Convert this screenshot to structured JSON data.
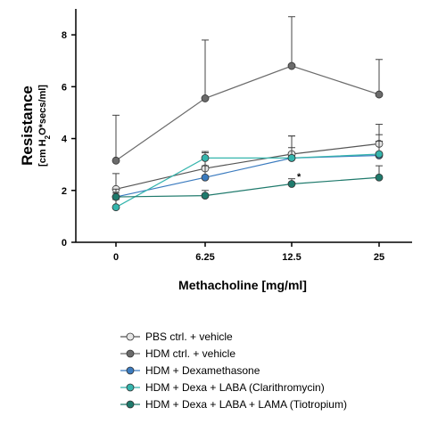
{
  "chart_data": {
    "type": "line",
    "x": [
      "0",
      "6.25",
      "12.5",
      "25"
    ],
    "xlabel": "Methacholine [mg/ml]",
    "ylabel_main": "Resistance",
    "ylabel_unit_prefix": "[cm H",
    "ylabel_unit_sub": "2",
    "ylabel_unit_suffix": "O*secs/ml]",
    "ylim": [
      0,
      9
    ],
    "yticks": [
      "0",
      "2",
      "4",
      "6",
      "8"
    ],
    "annotation": "*",
    "series": [
      {
        "name": "PBS ctrl. + vehicle",
        "color": "#e6e6e6",
        "values": [
          2.05,
          2.85,
          3.4,
          3.8
        ],
        "err": [
          0.6,
          0.6,
          0.7,
          0.75
        ]
      },
      {
        "name": "HDM ctrl. + vehicle",
        "color": "#6b6b6b",
        "values": [
          3.15,
          5.55,
          6.8,
          5.7
        ],
        "err": [
          1.75,
          2.25,
          1.9,
          1.35
        ]
      },
      {
        "name": "HDM + Dexamethasone",
        "color": "#3b7bbf",
        "values": [
          1.75,
          2.5,
          3.25,
          3.35
        ],
        "err": [
          0.3,
          0.45,
          0.85,
          0.8
        ]
      },
      {
        "name": "HDM + Dexa + LABA (Clarithromycin)",
        "color": "#35b5ad",
        "values": [
          1.35,
          3.25,
          3.25,
          3.4
        ],
        "err": [
          0.3,
          0.25,
          0.4,
          0.5
        ]
      },
      {
        "name": "HDM + Dexa + LABA + LAMA (Tiotropium)",
        "color": "#1f7a6c",
        "values": [
          1.75,
          1.8,
          2.25,
          2.5
        ],
        "err": [
          0.15,
          0.2,
          0.2,
          0.45
        ]
      }
    ]
  }
}
